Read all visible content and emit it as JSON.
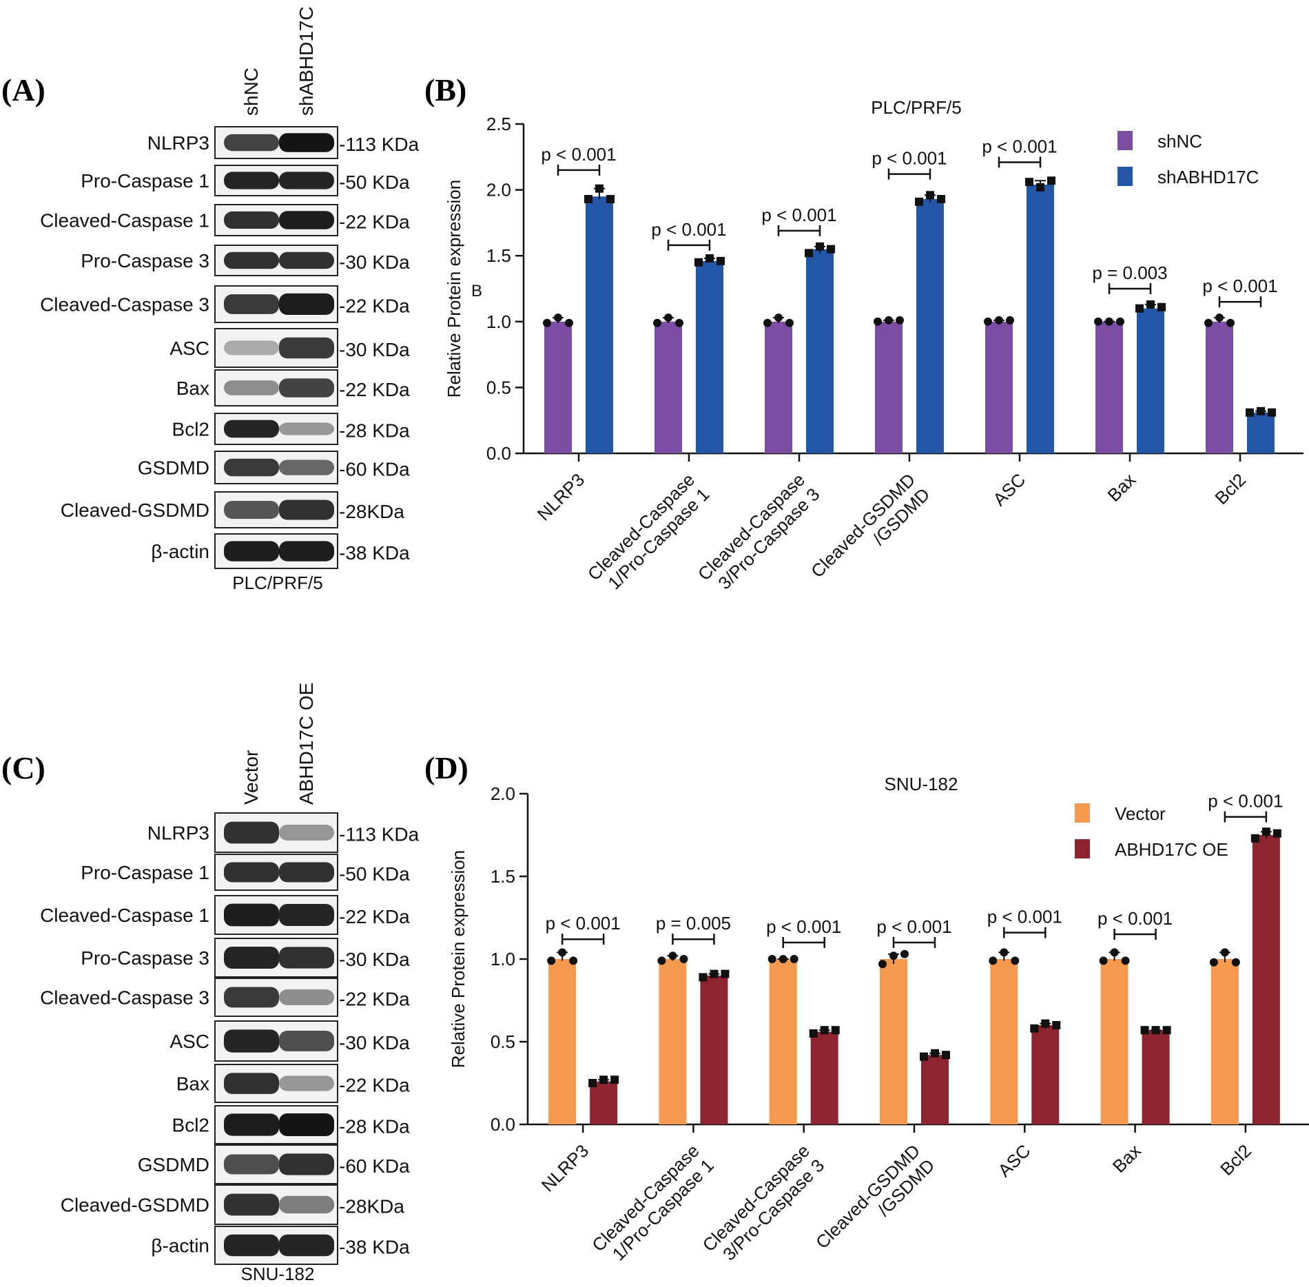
{
  "panels": {
    "A": {
      "letter": "(A)",
      "lanes": [
        "shNC",
        "shABHD17C"
      ],
      "caption": "PLC/PRF/5",
      "rows": [
        {
          "protein": "NLRP3",
          "kda": "-113 KDa",
          "bands": [
            0.75,
            1.0
          ]
        },
        {
          "protein": "Pro-Caspase 1",
          "kda": "-50 KDa",
          "bands": [
            0.9,
            0.9
          ]
        },
        {
          "protein": "Cleaved-Caspase 1",
          "kda": "-22 KDa",
          "bands": [
            0.85,
            0.95
          ]
        },
        {
          "protein": "Pro-Caspase 3",
          "kda": "-30 KDa",
          "bands": [
            0.85,
            0.85
          ]
        },
        {
          "protein": "Cleaved-Caspase 3",
          "kda": "-22 KDa",
          "bands": [
            0.8,
            0.95
          ]
        },
        {
          "protein": "ASC",
          "kda": "-30 KDa",
          "bands": [
            0.2,
            0.8
          ]
        },
        {
          "protein": "Bax",
          "kda": "-22 KDa",
          "bands": [
            0.35,
            0.75
          ]
        },
        {
          "protein": "Bcl2",
          "kda": "-28 KDa",
          "bands": [
            0.9,
            0.3
          ]
        },
        {
          "protein": "GSDMD",
          "kda": "-60 KDa",
          "bands": [
            0.8,
            0.55
          ]
        },
        {
          "protein": "Cleaved-GSDMD",
          "kda": "-28KDa",
          "bands": [
            0.65,
            0.85
          ]
        },
        {
          "protein": "β-actin",
          "kda": "-38 KDa",
          "bands": [
            0.95,
            0.95
          ]
        }
      ]
    },
    "C": {
      "letter": "(C)",
      "lanes": [
        "Vector",
        "ABHD17C OE"
      ],
      "caption": "SNU-182",
      "rows": [
        {
          "protein": "NLRP3",
          "kda": "-113 KDa",
          "bands": [
            0.85,
            0.3
          ]
        },
        {
          "protein": "Pro-Caspase 1",
          "kda": "-50 KDa",
          "bands": [
            0.85,
            0.85
          ]
        },
        {
          "protein": "Cleaved-Caspase 1",
          "kda": "-22 KDa",
          "bands": [
            0.95,
            0.9
          ]
        },
        {
          "protein": "Pro-Caspase 3",
          "kda": "-30 KDa",
          "bands": [
            0.9,
            0.85
          ]
        },
        {
          "protein": "Cleaved-Caspase 3",
          "kda": "-22 KDa",
          "bands": [
            0.8,
            0.35
          ]
        },
        {
          "protein": "ASC",
          "kda": "-30 KDa",
          "bands": [
            0.9,
            0.7
          ]
        },
        {
          "protein": "Bax",
          "kda": "-22 KDa",
          "bands": [
            0.85,
            0.3
          ]
        },
        {
          "protein": "Bcl2",
          "kda": "-28 KDa",
          "bands": [
            0.95,
            1.0
          ]
        },
        {
          "protein": "GSDMD",
          "kda": "-60 KDa",
          "bands": [
            0.7,
            0.85
          ]
        },
        {
          "protein": "Cleaved-GSDMD",
          "kda": "-28KDa",
          "bands": [
            0.85,
            0.45
          ]
        },
        {
          "protein": "β-actin",
          "kda": "-38 KDa",
          "bands": [
            0.9,
            0.9
          ]
        }
      ]
    },
    "B": {
      "letter": "(B)",
      "stray_label": "B"
    },
    "D": {
      "letter": "(D)"
    }
  },
  "chart_data": [
    {
      "panel": "B",
      "type": "bar",
      "title": "PLC/PRF/5",
      "ylabel": "Relative Protein expression",
      "xlabel": "",
      "ylim": [
        0,
        2.5
      ],
      "yticks": [
        "0.0",
        "0.5",
        "1.0",
        "1.5",
        "2.0",
        "2.5"
      ],
      "categories": [
        "NLRP3",
        "Cleaved-Caspase 1/Pro-Caspase 1",
        "Cleaved-Caspase 3/Pro-Caspase 3",
        "Cleaved-GSDMD /GSDMD",
        "ASC",
        "Bax",
        "Bcl2"
      ],
      "category_lines": [
        [
          "NLRP3"
        ],
        [
          "Cleaved-Caspase",
          "1/Pro-Caspase 1"
        ],
        [
          "Cleaved-Caspase",
          "3/Pro-Caspase 3"
        ],
        [
          "Cleaved-GSDMD",
          "/GSDMD"
        ],
        [
          "ASC"
        ],
        [
          "Bax"
        ],
        [
          "Bcl2"
        ]
      ],
      "series": [
        {
          "name": "shNC",
          "color": "#7B4EA3",
          "marker": "circle",
          "values": [
            1.0,
            1.0,
            1.0,
            1.0,
            1.0,
            1.0,
            1.0
          ],
          "points": [
            [
              0.99,
              1.03,
              0.99
            ],
            [
              0.99,
              1.03,
              0.99
            ],
            [
              0.99,
              1.03,
              0.99
            ],
            [
              1.0,
              1.01,
              1.01
            ],
            [
              1.0,
              1.01,
              1.01
            ],
            [
              1.0,
              1.0,
              1.0
            ],
            [
              0.99,
              1.03,
              0.99
            ]
          ]
        },
        {
          "name": "shABHD17C",
          "color": "#2456A8",
          "marker": "square",
          "values": [
            1.95,
            1.46,
            1.55,
            1.93,
            2.04,
            1.1,
            0.31
          ],
          "points": [
            [
              1.93,
              2.01,
              1.93
            ],
            [
              1.45,
              1.48,
              1.46
            ],
            [
              1.52,
              1.57,
              1.55
            ],
            [
              1.91,
              1.96,
              1.93
            ],
            [
              2.06,
              2.02,
              2.07
            ],
            [
              1.1,
              1.13,
              1.11
            ],
            [
              0.31,
              0.32,
              0.31
            ]
          ]
        }
      ],
      "annotations": [
        "p < 0.001",
        "p < 0.001",
        "p < 0.001",
        "p < 0.001",
        "p < 0.001",
        "p = 0.003",
        "p < 0.001"
      ],
      "annotation_heights": [
        2.15,
        1.58,
        1.69,
        2.12,
        2.21,
        1.25,
        1.15
      ],
      "legend_position": "top-right"
    },
    {
      "panel": "D",
      "type": "bar",
      "title": "SNU-182",
      "ylabel": "Relative Protein expression",
      "xlabel": "",
      "ylim": [
        0,
        2.0
      ],
      "yticks": [
        "0.0",
        "0.5",
        "1.0",
        "1.5",
        "2.0"
      ],
      "categories": [
        "NLRP3",
        "Cleaved-Caspase 1/Pro-Caspase 1",
        "Cleaved-Caspase 3/Pro-Caspase 3",
        "Cleaved-GSDMD /GSDMD",
        "ASC",
        "Bax",
        "Bcl2"
      ],
      "category_lines": [
        [
          "NLRP3"
        ],
        [
          "Cleaved-Caspase",
          "1/Pro-Caspase 1"
        ],
        [
          "Cleaved-Caspase",
          "3/Pro-Caspase 3"
        ],
        [
          "Cleaved-GSDMD",
          "/GSDMD"
        ],
        [
          "ASC"
        ],
        [
          "Bax"
        ],
        [
          "Bcl2"
        ]
      ],
      "series": [
        {
          "name": "Vector",
          "color": "#F4994D",
          "marker": "circle",
          "values": [
            1.0,
            1.0,
            1.0,
            1.0,
            1.0,
            1.0,
            1.0
          ],
          "points": [
            [
              0.99,
              1.04,
              0.99
            ],
            [
              0.99,
              1.02,
              1.0
            ],
            [
              1.0,
              1.0,
              1.0
            ],
            [
              0.97,
              1.02,
              1.03
            ],
            [
              0.99,
              1.04,
              0.99
            ],
            [
              0.99,
              1.04,
              0.99
            ],
            [
              0.98,
              1.04,
              0.98
            ]
          ]
        },
        {
          "name": "ABHD17C OE",
          "color": "#8E2430",
          "marker": "square",
          "values": [
            0.26,
            0.9,
            0.56,
            0.42,
            0.6,
            0.57,
            1.75
          ],
          "points": [
            [
              0.25,
              0.27,
              0.27
            ],
            [
              0.89,
              0.91,
              0.91
            ],
            [
              0.55,
              0.57,
              0.57
            ],
            [
              0.41,
              0.43,
              0.42
            ],
            [
              0.58,
              0.61,
              0.6
            ],
            [
              0.57,
              0.57,
              0.57
            ],
            [
              1.73,
              1.77,
              1.76
            ]
          ]
        }
      ],
      "annotations": [
        "p < 0.001",
        "p = 0.005",
        "p < 0.001",
        "p < 0.001",
        "p < 0.001",
        "p < 0.001",
        "p < 0.001"
      ],
      "annotation_heights": [
        1.12,
        1.12,
        1.1,
        1.1,
        1.16,
        1.15,
        1.86
      ],
      "legend_position": "top-right"
    }
  ]
}
